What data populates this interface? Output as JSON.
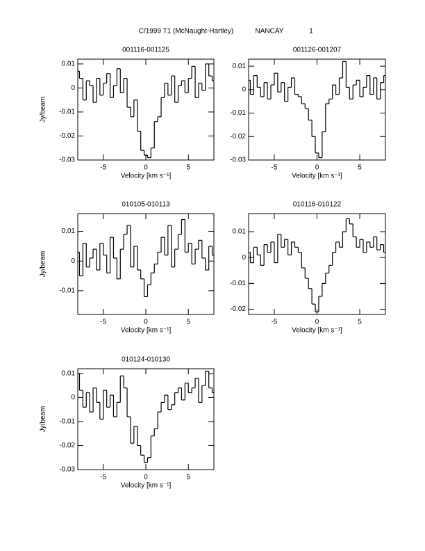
{
  "header": {
    "object": "C/1999 T1 (McNaught-Hartley)",
    "site": "NANCAY",
    "page": "1"
  },
  "chart_data": [
    {
      "type": "step",
      "title": "001116-001125",
      "x_label": "Velocity [km s⁻¹]",
      "y_label": "Jy/beam",
      "x": [
        -8,
        -7.6,
        -7.2,
        -6.8,
        -6.4,
        -6,
        -5.6,
        -5.2,
        -4.8,
        -4.4,
        -4,
        -3.6,
        -3.2,
        -2.8,
        -2.4,
        -2,
        -1.6,
        -1.2,
        -0.8,
        -0.4,
        0,
        0.4,
        0.8,
        1.2,
        1.6,
        2,
        2.4,
        2.8,
        3.2,
        3.6,
        4,
        4.4,
        4.8,
        5.2,
        5.6,
        6,
        6.4,
        6.8,
        7.2,
        7.6,
        8
      ],
      "values": [
        0.007,
        0.004,
        -0.005,
        0.003,
        0.001,
        -0.006,
        0.004,
        -0.003,
        0.002,
        0.006,
        -0.004,
        0.001,
        0.008,
        -0.002,
        0.004,
        -0.008,
        -0.012,
        -0.005,
        -0.018,
        -0.026,
        -0.028,
        -0.029,
        -0.025,
        -0.014,
        -0.012,
        -0.004,
        0.002,
        -0.003,
        0.005,
        -0.006,
        0.001,
        0.003,
        -0.002,
        0.004,
        0.009,
        -0.004,
        0.002,
        -0.001,
        0.01,
        0.005,
        0.003
      ],
      "color": "#000000",
      "xlim": [
        -8,
        8
      ],
      "xticks": [
        -5,
        0,
        5
      ],
      "ylim": [
        -0.03,
        0.012
      ],
      "yticks": [
        -0.03,
        -0.02,
        -0.01,
        0,
        0.01
      ]
    },
    {
      "type": "step",
      "title": "001126-001207",
      "x_label": "Velocity [km s⁻¹]",
      "x": [
        -8,
        -7.6,
        -7.2,
        -6.8,
        -6.4,
        -6,
        -5.6,
        -5.2,
        -4.8,
        -4.4,
        -4,
        -3.6,
        -3.2,
        -2.8,
        -2.4,
        -2,
        -1.6,
        -1.2,
        -0.8,
        -0.4,
        0,
        0.4,
        0.8,
        1.2,
        1.6,
        2,
        2.4,
        2.8,
        3.2,
        3.6,
        4,
        4.4,
        4.8,
        5.2,
        5.6,
        6,
        6.4,
        6.8,
        7.2,
        7.6,
        8
      ],
      "values": [
        0.004,
        -0.002,
        0.006,
        0.001,
        -0.003,
        0.003,
        -0.004,
        0.002,
        0.007,
        -0.001,
        0.003,
        -0.005,
        0.001,
        0.005,
        -0.002,
        -0.003,
        -0.006,
        -0.008,
        -0.013,
        -0.02,
        -0.027,
        -0.029,
        -0.018,
        -0.006,
        -0.004,
        0.002,
        -0.002,
        0.005,
        0.012,
        0.001,
        -0.004,
        0.002,
        0.004,
        -0.003,
        0.001,
        0.006,
        -0.002,
        0.005,
        -0.004,
        0.003,
        0.006
      ],
      "color": "#000000",
      "xlim": [
        -8,
        8
      ],
      "xticks": [
        -5,
        0,
        5
      ],
      "ylim": [
        -0.03,
        0.013
      ],
      "yticks": [
        -0.03,
        -0.02,
        -0.01,
        0,
        0.01
      ]
    },
    {
      "type": "step",
      "title": "010105-010113",
      "x_label": "Velocity [km s⁻¹]",
      "y_label": "Jy/beam",
      "x": [
        -8,
        -7.6,
        -7.2,
        -6.8,
        -6.4,
        -6,
        -5.6,
        -5.2,
        -4.8,
        -4.4,
        -4,
        -3.6,
        -3.2,
        -2.8,
        -2.4,
        -2,
        -1.6,
        -1.2,
        -0.8,
        -0.4,
        0,
        0.4,
        0.8,
        1.2,
        1.6,
        2,
        2.4,
        2.8,
        3.2,
        3.6,
        4,
        4.4,
        4.8,
        5.2,
        5.6,
        6,
        6.4,
        6.8,
        7.2,
        7.6,
        8
      ],
      "values": [
        0.003,
        -0.005,
        0.006,
        -0.002,
        0.001,
        0.004,
        -0.003,
        0.006,
        0.002,
        -0.004,
        0.008,
        0.001,
        -0.006,
        0.004,
        0.009,
        0.012,
        -0.002,
        0.005,
        -0.003,
        -0.006,
        -0.012,
        -0.008,
        -0.004,
        -0.001,
        0.003,
        0.008,
        0.002,
        0.012,
        -0.002,
        0.004,
        0.009,
        0.014,
        0.003,
        0.006,
        -0.001,
        0.004,
        0.007,
        0.001,
        -0.003,
        0.005,
        0.002
      ],
      "color": "#000000",
      "xlim": [
        -8,
        8
      ],
      "xticks": [
        -5,
        0,
        5
      ],
      "ylim": [
        -0.018,
        0.016
      ],
      "yticks": [
        -0.01,
        0,
        0.01
      ]
    },
    {
      "type": "step",
      "title": "010116-010122",
      "x_label": "Velocity [km s⁻¹]",
      "x": [
        -8,
        -7.6,
        -7.2,
        -6.8,
        -6.4,
        -6,
        -5.6,
        -5.2,
        -4.8,
        -4.4,
        -4,
        -3.6,
        -3.2,
        -2.8,
        -2.4,
        -2,
        -1.6,
        -1.2,
        -0.8,
        -0.4,
        0,
        0.4,
        0.8,
        1.2,
        1.6,
        2,
        2.4,
        2.8,
        3.2,
        3.6,
        4,
        4.4,
        4.8,
        5.2,
        5.6,
        6,
        6.4,
        6.8,
        7.2,
        7.6,
        8
      ],
      "values": [
        0.002,
        -0.002,
        0.004,
        0.001,
        -0.003,
        0.005,
        0.002,
        0.006,
        -0.002,
        0.009,
        0.004,
        0.007,
        0.001,
        0.006,
        0.004,
        0.002,
        -0.004,
        -0.008,
        -0.012,
        -0.018,
        -0.021,
        -0.015,
        -0.01,
        -0.006,
        -0.003,
        0.002,
        0.006,
        0.004,
        0.01,
        0.015,
        0.013,
        0.008,
        0.004,
        0.007,
        0.002,
        0.006,
        0.004,
        0.008,
        0.003,
        0.005,
        0.002
      ],
      "color": "#000000",
      "xlim": [
        -8,
        8
      ],
      "xticks": [
        -5,
        0,
        5
      ],
      "ylim": [
        -0.022,
        0.017
      ],
      "yticks": [
        -0.02,
        -0.01,
        0,
        0.01
      ]
    },
    {
      "type": "step",
      "title": "010124-010130",
      "x_label": "Velocity [km s⁻¹]",
      "y_label": "Jy/beam",
      "x": [
        -8,
        -7.6,
        -7.2,
        -6.8,
        -6.4,
        -6,
        -5.6,
        -5.2,
        -4.8,
        -4.4,
        -4,
        -3.6,
        -3.2,
        -2.8,
        -2.4,
        -2,
        -1.6,
        -1.2,
        -0.8,
        -0.4,
        0,
        0.4,
        0.8,
        1.2,
        1.6,
        2,
        2.4,
        2.8,
        3.2,
        3.6,
        4,
        4.4,
        4.8,
        5.2,
        5.6,
        6,
        6.4,
        6.8,
        7.2,
        7.6,
        8
      ],
      "values": [
        0.01,
        0.003,
        -0.004,
        0.002,
        -0.006,
        0.004,
        -0.002,
        -0.009,
        0.003,
        -0.004,
        0.001,
        -0.008,
        -0.002,
        0.009,
        0.004,
        -0.008,
        -0.019,
        -0.012,
        -0.02,
        -0.024,
        -0.027,
        -0.025,
        -0.016,
        -0.013,
        -0.006,
        -0.002,
        0.001,
        -0.005,
        -0.003,
        0.002,
        0.004,
        -0.001,
        0.006,
        0.002,
        0.004,
        0.008,
        -0.002,
        0.005,
        0.011,
        0.004,
        0.002
      ],
      "color": "#000000",
      "xlim": [
        -8,
        8
      ],
      "xticks": [
        -5,
        0,
        5
      ],
      "ylim": [
        -0.03,
        0.012
      ],
      "yticks": [
        -0.03,
        -0.02,
        -0.01,
        0,
        0.01
      ]
    }
  ]
}
